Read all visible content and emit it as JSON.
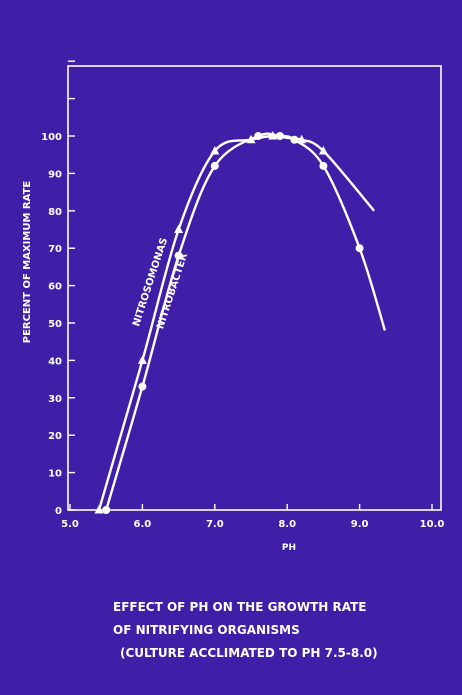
{
  "colors": {
    "background": "#3f1ea8",
    "ink": "#ffffff",
    "border": "#ffffff"
  },
  "chart_data": {
    "type": "line",
    "title": "",
    "xlabel": "PH",
    "ylabel": "PERCENT OF MAXIMUM RATE",
    "xlim": [
      5.0,
      10.0
    ],
    "ylim": [
      0,
      100
    ],
    "xticks": [
      5.0,
      6.0,
      7.0,
      8.0,
      9.0,
      10.0
    ],
    "xtick_labels": [
      "5.0",
      "6.0",
      "7.0",
      "8.0",
      "9.0",
      "10.0"
    ],
    "yticks": [
      0,
      10,
      20,
      30,
      40,
      50,
      60,
      70,
      80,
      90,
      100
    ],
    "ytick_labels": [
      "0",
      "10",
      "20",
      "30",
      "40",
      "50",
      "60",
      "70",
      "80",
      "90",
      "100"
    ],
    "grid": false,
    "series": [
      {
        "name": "NITROSOMONAS",
        "marker": "triangle",
        "x": [
          5.4,
          6.0,
          6.5,
          7.0,
          7.5,
          7.8,
          8.0,
          8.2,
          8.5,
          9.2
        ],
        "y": [
          0,
          40,
          75,
          96,
          99,
          100,
          99.5,
          99,
          96,
          80
        ],
        "markers_x": [
          5.4,
          6.0,
          6.5,
          7.0,
          7.5,
          7.8,
          8.2,
          8.5
        ],
        "markers_y": [
          0,
          40,
          75,
          96,
          99,
          100,
          99,
          96
        ]
      },
      {
        "name": "NITROBACTER",
        "marker": "circle",
        "x": [
          5.5,
          6.0,
          6.5,
          7.0,
          7.6,
          7.9,
          8.1,
          8.5,
          9.0,
          9.35
        ],
        "y": [
          0,
          33,
          68,
          92,
          100,
          100,
          99,
          92,
          70,
          48
        ],
        "markers_x": [
          5.5,
          6.0,
          6.5,
          7.0,
          7.6,
          7.9,
          8.1,
          8.5,
          9.0
        ],
        "markers_y": [
          0,
          33,
          68,
          92,
          100,
          100,
          99,
          92,
          70
        ]
      }
    ]
  },
  "caption": {
    "line1": "EFFECT OF PH ON THE GROWTH RATE",
    "line2": "OF NITRIFYING ORGANISMS",
    "line3": "(CULTURE ACCLIMATED TO PH 7.5-8.0)"
  }
}
